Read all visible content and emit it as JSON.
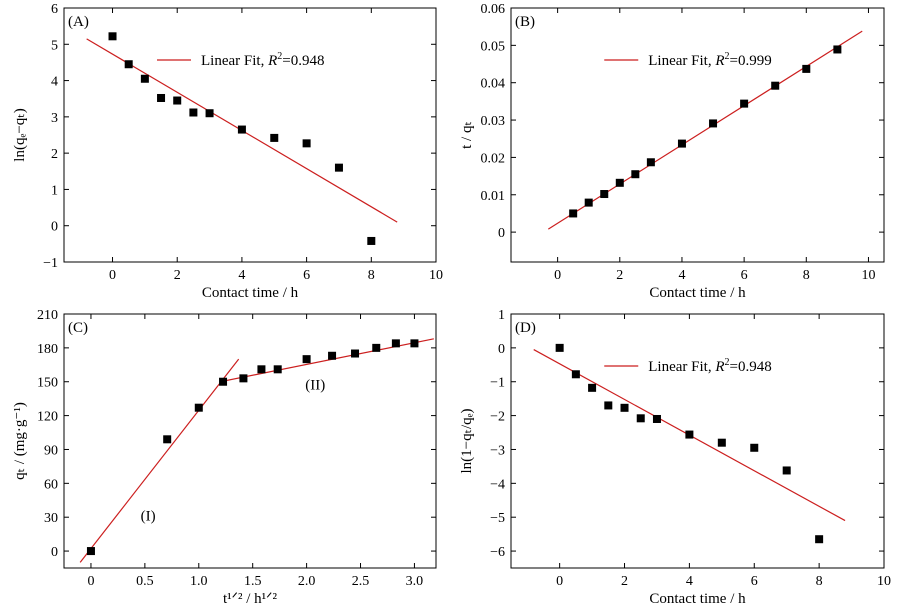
{
  "chart_data": [
    {
      "panel_label": "(A)",
      "type": "scatter",
      "xlabel": "Contact time / h",
      "ylabel": "ln(qₑ−qₜ)",
      "xlim": [
        -1.5,
        10
      ],
      "ylim": [
        -1,
        6
      ],
      "xticks": [
        0,
        2,
        4,
        6,
        8,
        10
      ],
      "yticks": [
        -1,
        0,
        1,
        2,
        3,
        4,
        5,
        6
      ],
      "points": [
        [
          0,
          5.22
        ],
        [
          0.5,
          4.45
        ],
        [
          1,
          4.05
        ],
        [
          1.5,
          3.52
        ],
        [
          2,
          3.45
        ],
        [
          2.5,
          3.12
        ],
        [
          3,
          3.1
        ],
        [
          4,
          2.65
        ],
        [
          5,
          2.42
        ],
        [
          6,
          2.27
        ],
        [
          7,
          1.6
        ],
        [
          8,
          -0.42
        ]
      ],
      "fit": {
        "x": [
          -0.8,
          8.8
        ],
        "y": [
          5.15,
          0.1
        ]
      },
      "legend": {
        "label": "Linear Fit, ",
        "r2": "=0.948",
        "position": "top-right"
      },
      "grid": false
    },
    {
      "panel_label": "(B)",
      "type": "scatter",
      "xlabel": "Contact time / h",
      "ylabel": "t / qₜ",
      "xlim": [
        -1.5,
        10.5
      ],
      "ylim": [
        -0.008,
        0.06
      ],
      "xticks": [
        0,
        2,
        4,
        6,
        8,
        10
      ],
      "yticks": [
        0,
        0.01,
        0.02,
        0.03,
        0.04,
        0.05,
        0.06
      ],
      "ytick_labels": [
        "0",
        "0.01",
        "0.02",
        "0.03",
        "0.04",
        "0.05",
        "0.06"
      ],
      "points": [
        [
          0.5,
          0.005
        ],
        [
          1,
          0.0079
        ],
        [
          1.5,
          0.0102
        ],
        [
          2,
          0.0132
        ],
        [
          2.5,
          0.0155
        ],
        [
          3,
          0.0187
        ],
        [
          4,
          0.0237
        ],
        [
          5,
          0.0291
        ],
        [
          6,
          0.0344
        ],
        [
          7,
          0.0392
        ],
        [
          8,
          0.0437
        ],
        [
          9,
          0.0489
        ]
      ],
      "fit": {
        "x": [
          -0.3,
          9.8
        ],
        "y": [
          0.0008,
          0.0538
        ]
      },
      "legend": {
        "label": "Linear Fit, ",
        "r2": "=0.999",
        "position": "top-right"
      },
      "grid": false
    },
    {
      "panel_label": "(C)",
      "type": "scatter",
      "xlabel": "t¹ᐟ² / h¹ᐟ²",
      "ylabel": "qₜ / (mg·g⁻¹)",
      "xlim": [
        -0.25,
        3.2
      ],
      "ylim": [
        -15,
        210
      ],
      "xticks": [
        0,
        0.5,
        1.0,
        1.5,
        2.0,
        2.5,
        3.0
      ],
      "xtick_labels": [
        "0",
        "0.5",
        "1.0",
        "1.5",
        "2.0",
        "2.5",
        "3.0"
      ],
      "yticks": [
        0,
        30,
        60,
        90,
        120,
        150,
        180,
        210
      ],
      "points": [
        [
          0,
          0
        ],
        [
          0.707,
          99
        ],
        [
          1.0,
          127
        ],
        [
          1.225,
          150
        ],
        [
          1.414,
          153
        ],
        [
          1.581,
          161
        ],
        [
          1.732,
          161
        ],
        [
          2.0,
          170
        ],
        [
          2.236,
          173
        ],
        [
          2.449,
          175
        ],
        [
          2.646,
          180
        ],
        [
          2.828,
          184
        ],
        [
          3.0,
          184
        ]
      ],
      "fits": [
        {
          "x": [
            -0.1,
            1.37
          ],
          "y": [
            -10,
            170
          ]
        },
        {
          "x": [
            1.2,
            3.18
          ],
          "y": [
            150,
            188
          ]
        }
      ],
      "annotations": [
        {
          "text": "(I)",
          "x": 0.53,
          "y": 27
        },
        {
          "text": "(II)",
          "x": 2.08,
          "y": 143
        }
      ],
      "grid": false
    },
    {
      "panel_label": "(D)",
      "type": "scatter",
      "xlabel": "Contact time / h",
      "ylabel": "ln(1−qₜ/qₑ)",
      "xlim": [
        -1.5,
        10
      ],
      "ylim": [
        -6.5,
        1
      ],
      "xticks": [
        0,
        2,
        4,
        6,
        8,
        10
      ],
      "yticks": [
        -6,
        -5,
        -4,
        -3,
        -2,
        -1,
        0,
        1
      ],
      "points": [
        [
          0,
          0
        ],
        [
          0.5,
          -0.78
        ],
        [
          1,
          -1.18
        ],
        [
          1.5,
          -1.7
        ],
        [
          2,
          -1.77
        ],
        [
          2.5,
          -2.08
        ],
        [
          3,
          -2.1
        ],
        [
          4,
          -2.56
        ],
        [
          5,
          -2.8
        ],
        [
          6,
          -2.95
        ],
        [
          7,
          -3.62
        ],
        [
          8,
          -5.65
        ]
      ],
      "fit": {
        "x": [
          -0.8,
          8.8
        ],
        "y": [
          -0.05,
          -5.1
        ]
      },
      "legend": {
        "label": "Linear Fit, ",
        "r2": "=0.948",
        "position": "top-right"
      },
      "grid": false
    }
  ]
}
